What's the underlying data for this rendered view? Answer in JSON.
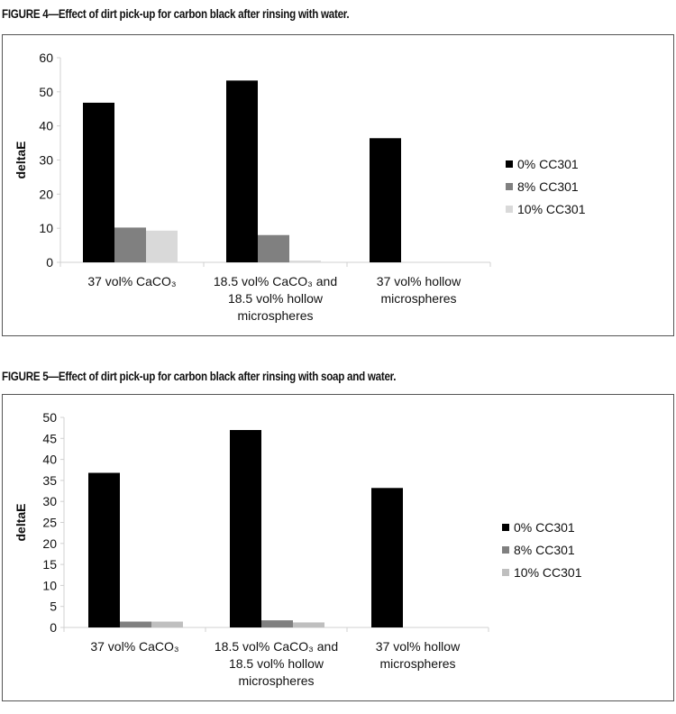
{
  "figures": [
    {
      "caption": "FIGURE 4—Effect of dirt pick-up for carbon black after rinsing with water.",
      "chart_data": {
        "type": "bar",
        "ylabel": "deltaE",
        "ylim": [
          0,
          60
        ],
        "yticks": [
          "0",
          "10",
          "20",
          "30",
          "40",
          "50",
          "60"
        ],
        "categories": [
          [
            "37 vol% CaCO₃"
          ],
          [
            "18.5 vol% CaCO₃  and",
            "18.5 vol% hollow",
            "microspheres"
          ],
          [
            "37 vol% hollow",
            "microspheres"
          ]
        ],
        "series": [
          {
            "name": "0% CC301",
            "color": "#000000",
            "values": [
              46.8,
              53.3,
              36.4
            ]
          },
          {
            "name": "8% CC301",
            "color": "#808080",
            "values": [
              10.2,
              8.0,
              0
            ]
          },
          {
            "name": "10% CC301",
            "color": "#d9d9d9",
            "values": [
              9.3,
              0.5,
              0
            ]
          }
        ],
        "grid": false,
        "legend": "right"
      }
    },
    {
      "caption": "FIGURE 5—Effect of dirt pick-up for carbon black after rinsing with soap and water.",
      "chart_data": {
        "type": "bar",
        "ylabel": "deltaE",
        "ylim": [
          0,
          50
        ],
        "yticks": [
          "0",
          "5",
          "10",
          "15",
          "20",
          "25",
          "30",
          "35",
          "40",
          "45",
          "50"
        ],
        "categories": [
          [
            "37 vol% CaCO₃"
          ],
          [
            "18.5 vol% CaCO₃ and",
            "18.5 vol% hollow",
            "microspheres"
          ],
          [
            "37 vol% hollow",
            "microspheres"
          ]
        ],
        "series": [
          {
            "name": "0% CC301",
            "color": "#000000",
            "values": [
              36.8,
              47.0,
              33.2
            ]
          },
          {
            "name": "8% CC301",
            "color": "#808080",
            "values": [
              1.4,
              1.7,
              0
            ]
          },
          {
            "name": "10% CC301",
            "color": "#bfbfbf",
            "values": [
              1.4,
              1.2,
              0
            ]
          }
        ],
        "grid": false,
        "legend": "right"
      }
    }
  ]
}
